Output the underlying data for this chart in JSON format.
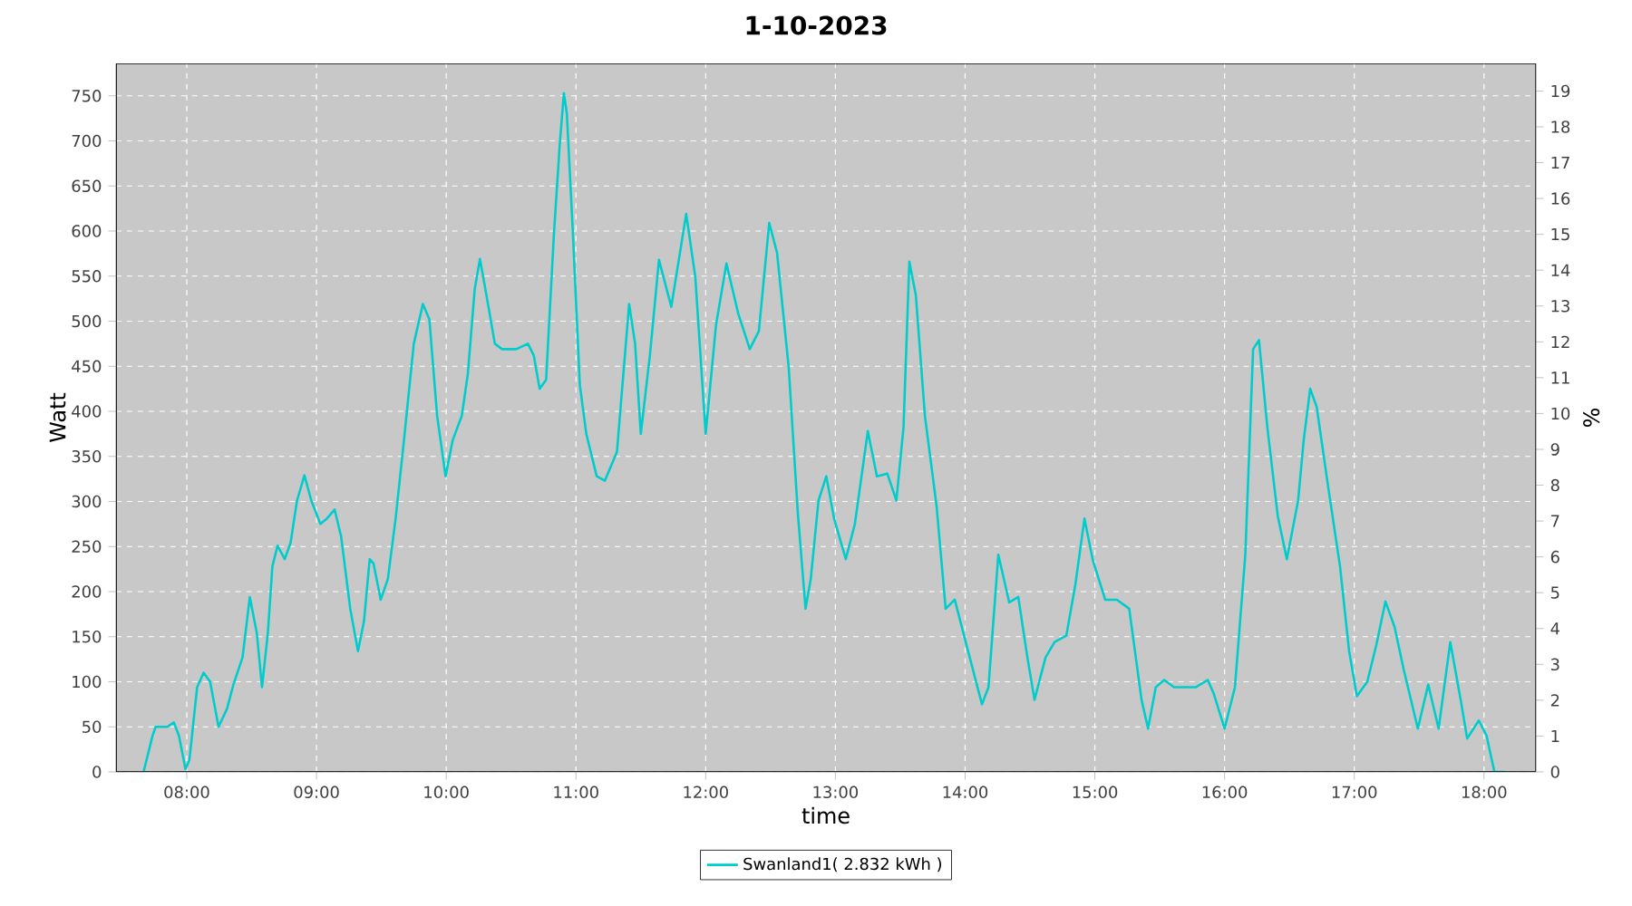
{
  "chart_data": {
    "type": "line",
    "title": "1-10-2023",
    "xlabel": "time",
    "ylabel": "Watt",
    "y2label": "%",
    "xlim": [
      7.455,
      18.4
    ],
    "ylim": [
      0,
      786
    ],
    "y2lim": [
      0,
      19.77
    ],
    "xticks": [
      {
        "value": 8,
        "label": "08:00"
      },
      {
        "value": 9,
        "label": "09:00"
      },
      {
        "value": 10,
        "label": "10:00"
      },
      {
        "value": 11,
        "label": "11:00"
      },
      {
        "value": 12,
        "label": "12:00"
      },
      {
        "value": 13,
        "label": "13:00"
      },
      {
        "value": 14,
        "label": "14:00"
      },
      {
        "value": 15,
        "label": "15:00"
      },
      {
        "value": 16,
        "label": "16:00"
      },
      {
        "value": 17,
        "label": "17:00"
      },
      {
        "value": 18,
        "label": "18:00"
      }
    ],
    "yticks": [
      0,
      50,
      100,
      150,
      200,
      250,
      300,
      350,
      400,
      450,
      500,
      550,
      600,
      650,
      700,
      750
    ],
    "y2ticks": [
      0,
      1,
      2,
      3,
      4,
      5,
      6,
      7,
      8,
      9,
      10,
      11,
      12,
      13,
      14,
      15,
      16,
      17,
      18,
      19
    ],
    "grid": true,
    "legend": "bottom",
    "series": [
      {
        "name": "Swanland1( 2.832 kWh )",
        "color": "#00cccc",
        "x": [
          7.667,
          7.736,
          7.76,
          7.85,
          7.9,
          7.94,
          7.99,
          8.02,
          8.08,
          8.13,
          8.18,
          8.245,
          8.31,
          8.36,
          8.43,
          8.486,
          8.54,
          8.58,
          8.625,
          8.66,
          8.7,
          8.755,
          8.8,
          8.85,
          8.907,
          8.96,
          9.03,
          9.08,
          9.14,
          9.19,
          9.26,
          9.32,
          9.366,
          9.41,
          9.44,
          9.495,
          9.55,
          9.61,
          9.67,
          9.75,
          9.82,
          9.87,
          9.93,
          9.995,
          10.05,
          10.12,
          10.167,
          10.22,
          10.26,
          10.31,
          10.375,
          10.43,
          10.54,
          10.63,
          10.675,
          10.72,
          10.77,
          10.83,
          10.875,
          10.907,
          10.93,
          10.977,
          11.03,
          11.08,
          11.16,
          11.223,
          11.316,
          11.41,
          11.456,
          11.5,
          11.57,
          11.64,
          11.735,
          11.85,
          11.92,
          12.0,
          12.08,
          12.16,
          12.25,
          12.34,
          12.41,
          12.49,
          12.55,
          12.64,
          12.71,
          12.77,
          12.81,
          12.87,
          12.93,
          12.99,
          13.08,
          13.15,
          13.25,
          13.32,
          13.4,
          13.47,
          13.525,
          13.57,
          13.62,
          13.69,
          13.78,
          13.85,
          13.92,
          14.01,
          14.13,
          14.18,
          14.256,
          14.34,
          14.41,
          14.48,
          14.535,
          14.62,
          14.69,
          14.78,
          14.85,
          14.92,
          14.986,
          15.08,
          15.17,
          15.265,
          15.36,
          15.41,
          15.47,
          15.535,
          15.61,
          15.78,
          15.87,
          15.916,
          16.0,
          16.08,
          16.16,
          16.22,
          16.265,
          16.33,
          16.41,
          16.48,
          16.567,
          16.61,
          16.66,
          16.71,
          16.8,
          16.89,
          16.96,
          17.02,
          17.1,
          17.17,
          17.24,
          17.31,
          17.38,
          17.49,
          17.57,
          17.65,
          17.74,
          17.82,
          17.87,
          17.96,
          18.02,
          18.08,
          18.16
        ],
        "values": [
          0,
          40,
          50,
          50,
          55,
          40,
          3,
          13,
          94,
          110,
          100,
          50,
          70,
          97,
          127,
          194,
          154,
          94,
          154,
          228,
          251,
          236,
          254,
          301,
          329,
          301,
          275,
          281,
          291,
          261,
          181,
          134,
          167,
          236,
          231,
          191,
          214,
          281,
          362,
          475,
          519,
          502,
          395,
          328,
          368,
          395,
          442,
          536,
          569,
          529,
          475,
          469,
          469,
          475,
          462,
          425,
          435,
          596,
          696,
          753,
          730,
          596,
          429,
          375,
          328,
          323,
          355,
          519,
          475,
          375,
          462,
          568,
          516,
          619,
          549,
          375,
          496,
          564,
          509,
          469,
          489,
          609,
          576,
          449,
          288,
          181,
          214,
          301,
          328,
          281,
          236,
          275,
          378,
          328,
          331,
          301,
          382,
          566,
          529,
          395,
          295,
          181,
          191,
          141,
          75,
          94,
          241,
          188,
          194,
          127,
          80,
          127,
          144,
          151,
          208,
          281,
          234,
          191,
          191,
          181,
          80,
          48,
          94,
          102,
          94,
          94,
          102,
          87,
          48,
          94,
          241,
          469,
          479,
          382,
          284,
          236,
          301,
          368,
          425,
          405,
          315,
          228,
          134,
          84,
          100,
          141,
          189,
          161,
          114,
          48,
          97,
          48,
          144,
          80,
          37,
          57,
          40,
          0,
          0
        ]
      }
    ]
  }
}
